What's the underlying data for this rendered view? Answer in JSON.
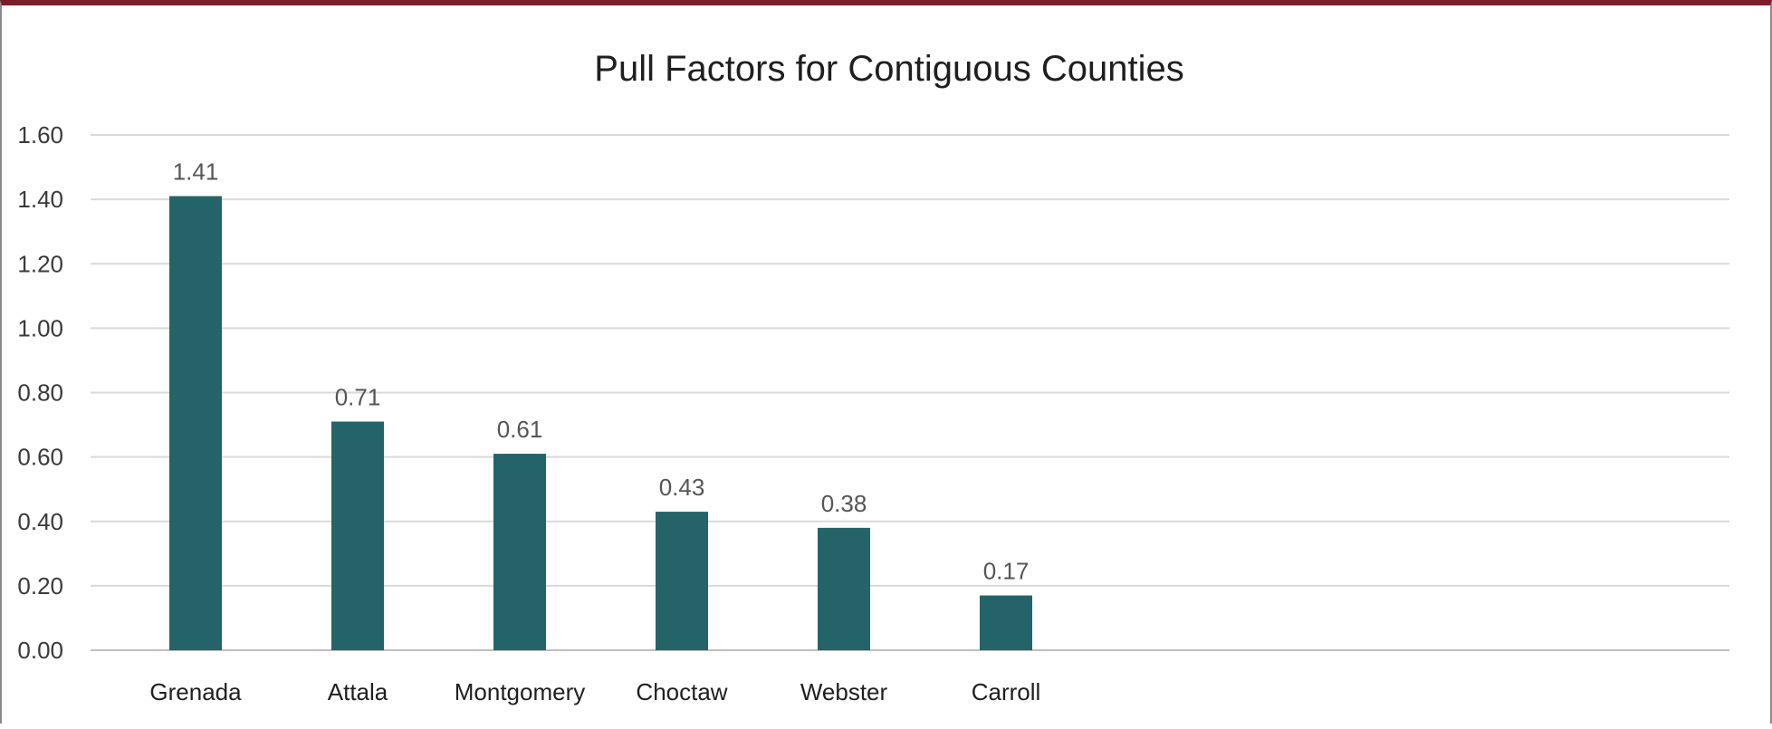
{
  "chart_data": {
    "type": "bar",
    "title": "Pull Factors for Contiguous Counties",
    "xlabel": "",
    "ylabel": "",
    "categories": [
      "Grenada",
      "Attala",
      "Montgomery",
      "Choctaw",
      "Webster",
      "Carroll"
    ],
    "values": [
      1.41,
      0.71,
      0.61,
      0.43,
      0.38,
      0.17
    ],
    "data_labels": [
      "1.41",
      "0.71",
      "0.61",
      "0.43",
      "0.38",
      "0.17"
    ],
    "ylim": [
      0,
      1.6
    ],
    "y_ticks": [
      0,
      0.2,
      0.4,
      0.6,
      0.8,
      1.0,
      1.2,
      1.4,
      1.6
    ],
    "y_tick_labels": [
      "0.00",
      "0.20",
      "0.40",
      "0.60",
      "0.80",
      "1.00",
      "1.20",
      "1.40",
      "1.60"
    ],
    "grid": true,
    "legend": "none",
    "bar_color": "#246468",
    "frame_accent_color": "#7b1e2a"
  }
}
